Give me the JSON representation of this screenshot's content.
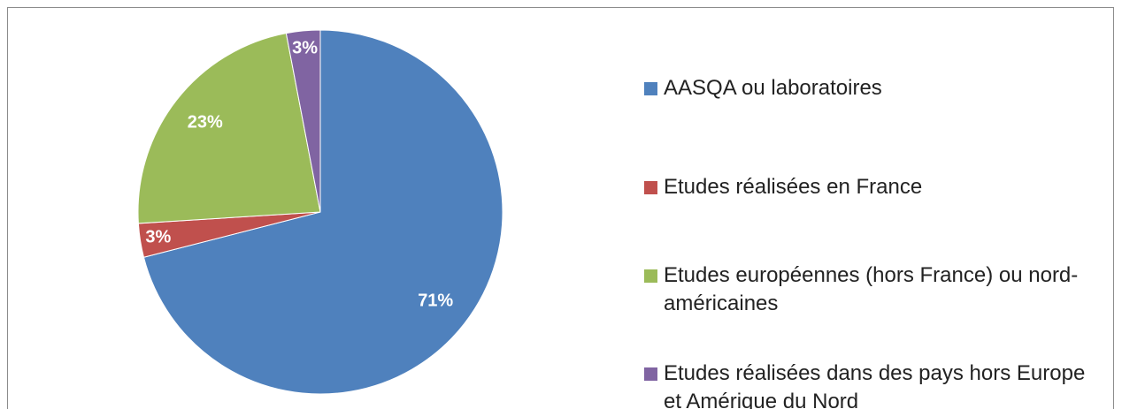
{
  "chart_data": {
    "type": "pie",
    "categories": [
      "AASQA ou laboratoires",
      "Etudes réalisées en France",
      "Etudes européennes (hors France) ou nord-américaines",
      "Etudes réalisées dans des pays hors Europe et Amérique du Nord"
    ],
    "values": [
      71,
      3,
      23,
      3
    ],
    "value_labels": [
      "71%",
      "3%",
      "23%",
      "3%"
    ],
    "colors": [
      "#4f81bd",
      "#c0504d",
      "#9bbb59",
      "#8064a2"
    ],
    "legend": "right"
  }
}
